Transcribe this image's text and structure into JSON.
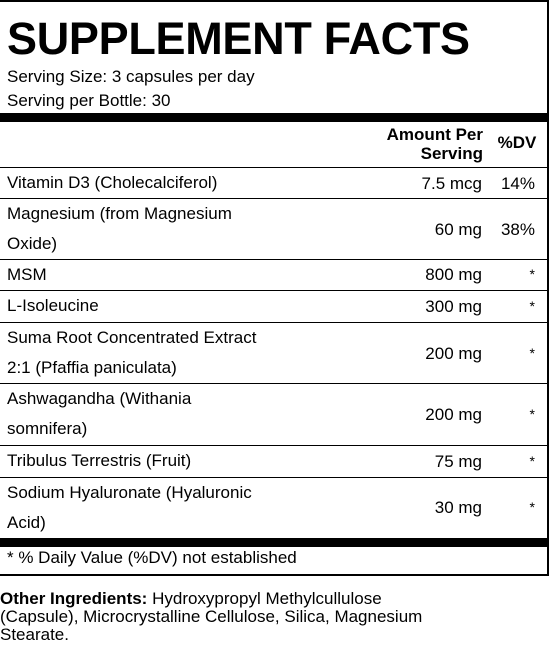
{
  "title": "SUPPLEMENT FACTS",
  "serving_size": "Serving Size: 3 capsules per day",
  "servings_per_bottle": "Serving per Bottle: 30",
  "header": {
    "amount_line1": "Amount Per",
    "amount_line2": "Serving",
    "dv": "%DV"
  },
  "rows": [
    {
      "name_line1": "Vitamin D3 (Cholecalciferol)",
      "name_line2": "",
      "amount": "7.5 mcg",
      "dv": "14%"
    },
    {
      "name_line1": "Magnesium (from Magnesium",
      "name_line2": "Oxide)",
      "amount": "60 mg",
      "dv": "38%"
    },
    {
      "name_line1": "MSM",
      "name_line2": "",
      "amount": "800 mg",
      "dv": "*"
    },
    {
      "name_line1": "L-Isoleucine",
      "name_line2": "",
      "amount": "300 mg",
      "dv": "*"
    },
    {
      "name_line1": "Suma Root Concentrated Extract",
      "name_line2": "2:1 (Pfaffia paniculata)",
      "amount": "200 mg",
      "dv": "*"
    },
    {
      "name_line1": "Ashwagandha (Withania",
      "name_line2": "somnifera)",
      "amount": "200 mg",
      "dv": "*"
    },
    {
      "name_line1": "Tribulus Terrestris (Fruit)",
      "name_line2": "",
      "amount": "75 mg",
      "dv": "*"
    },
    {
      "name_line1": "Sodium Hyaluronate (Hyaluronic",
      "name_line2": "Acid)",
      "amount": "30 mg",
      "dv": "*"
    }
  ],
  "footnote": "* % Daily Value (%DV) not established",
  "other_ingredients": {
    "label": "Other Ingredients:",
    "line1": " Hydroxypropyl Methylcullulose",
    "line2": "(Capsule), Microcrystalline Cellulose, Silica, Magnesium",
    "line3": "Stearate."
  }
}
